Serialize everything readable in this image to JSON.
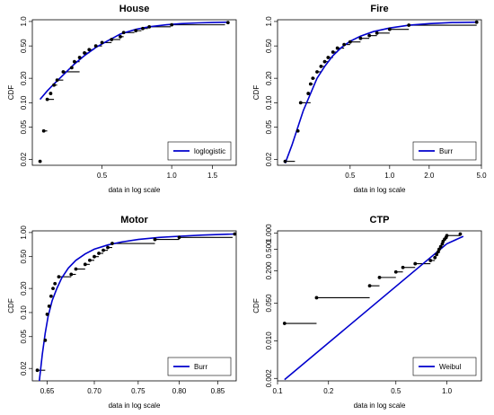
{
  "chart_data": [
    {
      "type": "scatter",
      "title": "House",
      "xlabel": "data in log scale",
      "ylabel": "CDF",
      "x_scale": "log",
      "y_scale": "log",
      "xlim": [
        0.25,
        1.9
      ],
      "ylim": [
        0.017,
        1.05
      ],
      "x_ticks": [
        0.5,
        1.0,
        1.5
      ],
      "x_tick_labels": [
        "0.5",
        "1.0",
        "1.5"
      ],
      "y_ticks": [
        1.0,
        0.5,
        0.2,
        0.1,
        0.05,
        0.02
      ],
      "y_tick_labels": [
        "1.0",
        "0.50",
        "0.20",
        "0.10",
        "0.05",
        "0.02"
      ],
      "legend": {
        "label": "loglogistic",
        "position": "bottom-right"
      },
      "fit_color": "#0000cd",
      "data_color": "#000000",
      "fit_line": {
        "x": [
          0.27,
          0.29,
          0.31,
          0.34,
          0.38,
          0.42,
          0.47,
          0.53,
          0.6,
          0.7,
          0.8,
          0.95,
          1.1,
          1.3,
          1.5,
          1.75
        ],
        "y": [
          0.11,
          0.14,
          0.17,
          0.22,
          0.3,
          0.38,
          0.48,
          0.58,
          0.7,
          0.8,
          0.86,
          0.91,
          0.94,
          0.96,
          0.97,
          0.98
        ]
      },
      "empirical_points": {
        "x": [
          0.27,
          0.28,
          0.29,
          0.3,
          0.31,
          0.32,
          0.34,
          0.37,
          0.38,
          0.4,
          0.42,
          0.44,
          0.47,
          0.5,
          0.55,
          0.6,
          0.62,
          0.7,
          0.75,
          0.8,
          1.0,
          1.75
        ],
        "y": [
          0.019,
          0.045,
          0.11,
          0.13,
          0.165,
          0.19,
          0.24,
          0.27,
          0.32,
          0.36,
          0.41,
          0.45,
          0.5,
          0.55,
          0.6,
          0.65,
          0.73,
          0.77,
          0.82,
          0.86,
          0.91,
          0.97
        ]
      },
      "step_lengths": [
        0,
        0.01,
        0.02,
        0,
        0.01,
        0.02,
        0.06,
        0,
        0.02,
        0.01,
        0.02,
        0.02,
        0.03,
        0.05,
        0.05,
        0.02,
        0.07,
        0.04,
        0.04,
        0.19,
        0.7,
        0
      ]
    },
    {
      "type": "scatter",
      "title": "Fire",
      "xlabel": "data in log scale",
      "ylabel": "CDF",
      "x_scale": "log",
      "y_scale": "log",
      "xlim": [
        0.14,
        5.0
      ],
      "ylim": [
        0.017,
        1.05
      ],
      "x_ticks": [
        0.5,
        1.0,
        2.0,
        5.0
      ],
      "x_tick_labels": [
        "0.5",
        "1.0",
        "2.0",
        "5.0"
      ],
      "y_ticks": [
        1.0,
        0.5,
        0.2,
        0.1,
        0.05,
        0.02
      ],
      "y_tick_labels": [
        "1.0",
        "0.50",
        "0.20",
        "0.10",
        "0.05",
        "0.02"
      ],
      "legend": {
        "label": "Burr",
        "position": "bottom-right"
      },
      "fit_color": "#0000cd",
      "data_color": "#000000",
      "fit_line": {
        "x": [
          0.16,
          0.18,
          0.2,
          0.22,
          0.25,
          0.28,
          0.32,
          0.37,
          0.43,
          0.5,
          0.6,
          0.75,
          1.0,
          1.4,
          2.0,
          3.0,
          4.6
        ],
        "y": [
          0.018,
          0.03,
          0.05,
          0.08,
          0.13,
          0.2,
          0.28,
          0.38,
          0.48,
          0.57,
          0.66,
          0.75,
          0.83,
          0.9,
          0.94,
          0.97,
          0.98
        ]
      },
      "empirical_points": {
        "x": [
          0.16,
          0.2,
          0.21,
          0.24,
          0.25,
          0.26,
          0.28,
          0.3,
          0.32,
          0.34,
          0.37,
          0.4,
          0.45,
          0.5,
          0.6,
          0.7,
          0.8,
          1.0,
          1.4,
          4.6
        ],
        "y": [
          0.019,
          0.045,
          0.1,
          0.13,
          0.17,
          0.2,
          0.24,
          0.28,
          0.32,
          0.36,
          0.42,
          0.47,
          0.52,
          0.56,
          0.62,
          0.67,
          0.72,
          0.8,
          0.9,
          0.98
        ]
      },
      "step_lengths": [
        0.03,
        0,
        0.04,
        0,
        0.01,
        0.01,
        0.02,
        0.02,
        0.02,
        0.03,
        0.03,
        0.05,
        0.05,
        0.1,
        0.1,
        0.1,
        0.2,
        0.4,
        3.2,
        0
      ]
    },
    {
      "type": "scatter",
      "title": "Motor",
      "xlabel": "data in log scale",
      "ylabel": "CDF",
      "x_scale": "log",
      "y_scale": "log",
      "xlim": [
        0.635,
        0.875
      ],
      "ylim": [
        0.014,
        1.05
      ],
      "x_ticks": [
        0.65,
        0.7,
        0.75,
        0.8,
        0.85
      ],
      "x_tick_labels": [
        "0.65",
        "0.70",
        "0.75",
        "0.80",
        "0.85"
      ],
      "y_ticks": [
        1.0,
        0.5,
        0.2,
        0.1,
        0.05,
        0.02
      ],
      "y_tick_labels": [
        "1.00",
        "0.50",
        "0.20",
        "0.10",
        "0.05",
        "0.02"
      ],
      "legend": {
        "label": "Burr",
        "position": "bottom-right"
      },
      "fit_color": "#0000cd",
      "data_color": "#000000",
      "fit_line": {
        "x": [
          0.642,
          0.645,
          0.648,
          0.651,
          0.655,
          0.66,
          0.665,
          0.672,
          0.68,
          0.69,
          0.7,
          0.715,
          0.73,
          0.75,
          0.775,
          0.8,
          0.83,
          0.873
        ],
        "y": [
          0.014,
          0.03,
          0.055,
          0.09,
          0.14,
          0.2,
          0.27,
          0.36,
          0.45,
          0.54,
          0.62,
          0.7,
          0.76,
          0.82,
          0.87,
          0.9,
          0.93,
          0.96
        ]
      },
      "empirical_points": {
        "x": [
          0.64,
          0.648,
          0.65,
          0.652,
          0.654,
          0.656,
          0.658,
          0.662,
          0.675,
          0.68,
          0.69,
          0.695,
          0.7,
          0.705,
          0.71,
          0.715,
          0.72,
          0.77,
          0.8,
          0.873
        ],
        "y": [
          0.019,
          0.045,
          0.095,
          0.12,
          0.16,
          0.2,
          0.23,
          0.28,
          0.3,
          0.35,
          0.4,
          0.45,
          0.5,
          0.55,
          0.6,
          0.65,
          0.73,
          0.82,
          0.87,
          0.96
        ]
      },
      "step_lengths": [
        0.008,
        0,
        0,
        0,
        0,
        0,
        0,
        0.013,
        0.005,
        0.01,
        0.005,
        0.005,
        0.005,
        0.005,
        0.005,
        0.005,
        0.05,
        0.03,
        0.07,
        0
      ]
    },
    {
      "type": "scatter",
      "title": "CTP",
      "xlabel": "data in log scale",
      "ylabel": "CDF",
      "x_scale": "log",
      "y_scale": "log",
      "xlim": [
        0.1,
        1.6
      ],
      "ylim": [
        0.0018,
        1.1
      ],
      "x_ticks": [
        0.1,
        0.2,
        0.5,
        1.0
      ],
      "x_tick_labels": [
        "0.1",
        "0.2",
        "0.5",
        "1.0"
      ],
      "y_ticks": [
        1.0,
        0.5,
        0.2,
        0.05,
        0.01,
        0.002
      ],
      "y_tick_labels": [
        "1.000",
        "0.500",
        "0.200",
        "0.050",
        "0.010",
        "0.002"
      ],
      "legend": {
        "label": "Weibul",
        "position": "bottom-right"
      },
      "fit_color": "#0000cd",
      "data_color": "#000000",
      "fit_line": {
        "x": [
          0.11,
          1.0,
          1.25
        ],
        "y": [
          0.0019,
          0.632,
          0.87
        ]
      },
      "empirical_points": {
        "x": [
          0.11,
          0.17,
          0.35,
          0.4,
          0.5,
          0.55,
          0.65,
          0.8,
          0.85,
          0.87,
          0.89,
          0.9,
          0.92,
          0.94,
          0.95,
          0.97,
          0.99,
          1.0,
          1.2
        ],
        "y": [
          0.021,
          0.063,
          0.105,
          0.15,
          0.19,
          0.23,
          0.27,
          0.31,
          0.35,
          0.4,
          0.45,
          0.5,
          0.56,
          0.63,
          0.7,
          0.77,
          0.83,
          0.9,
          0.96
        ]
      },
      "step_lengths": [
        0.06,
        0.18,
        0.05,
        0.1,
        0.05,
        0.1,
        0.15,
        0.05,
        0.02,
        0.02,
        0.01,
        0.02,
        0.02,
        0.01,
        0.02,
        0.02,
        0.01,
        0.2,
        0
      ]
    }
  ]
}
